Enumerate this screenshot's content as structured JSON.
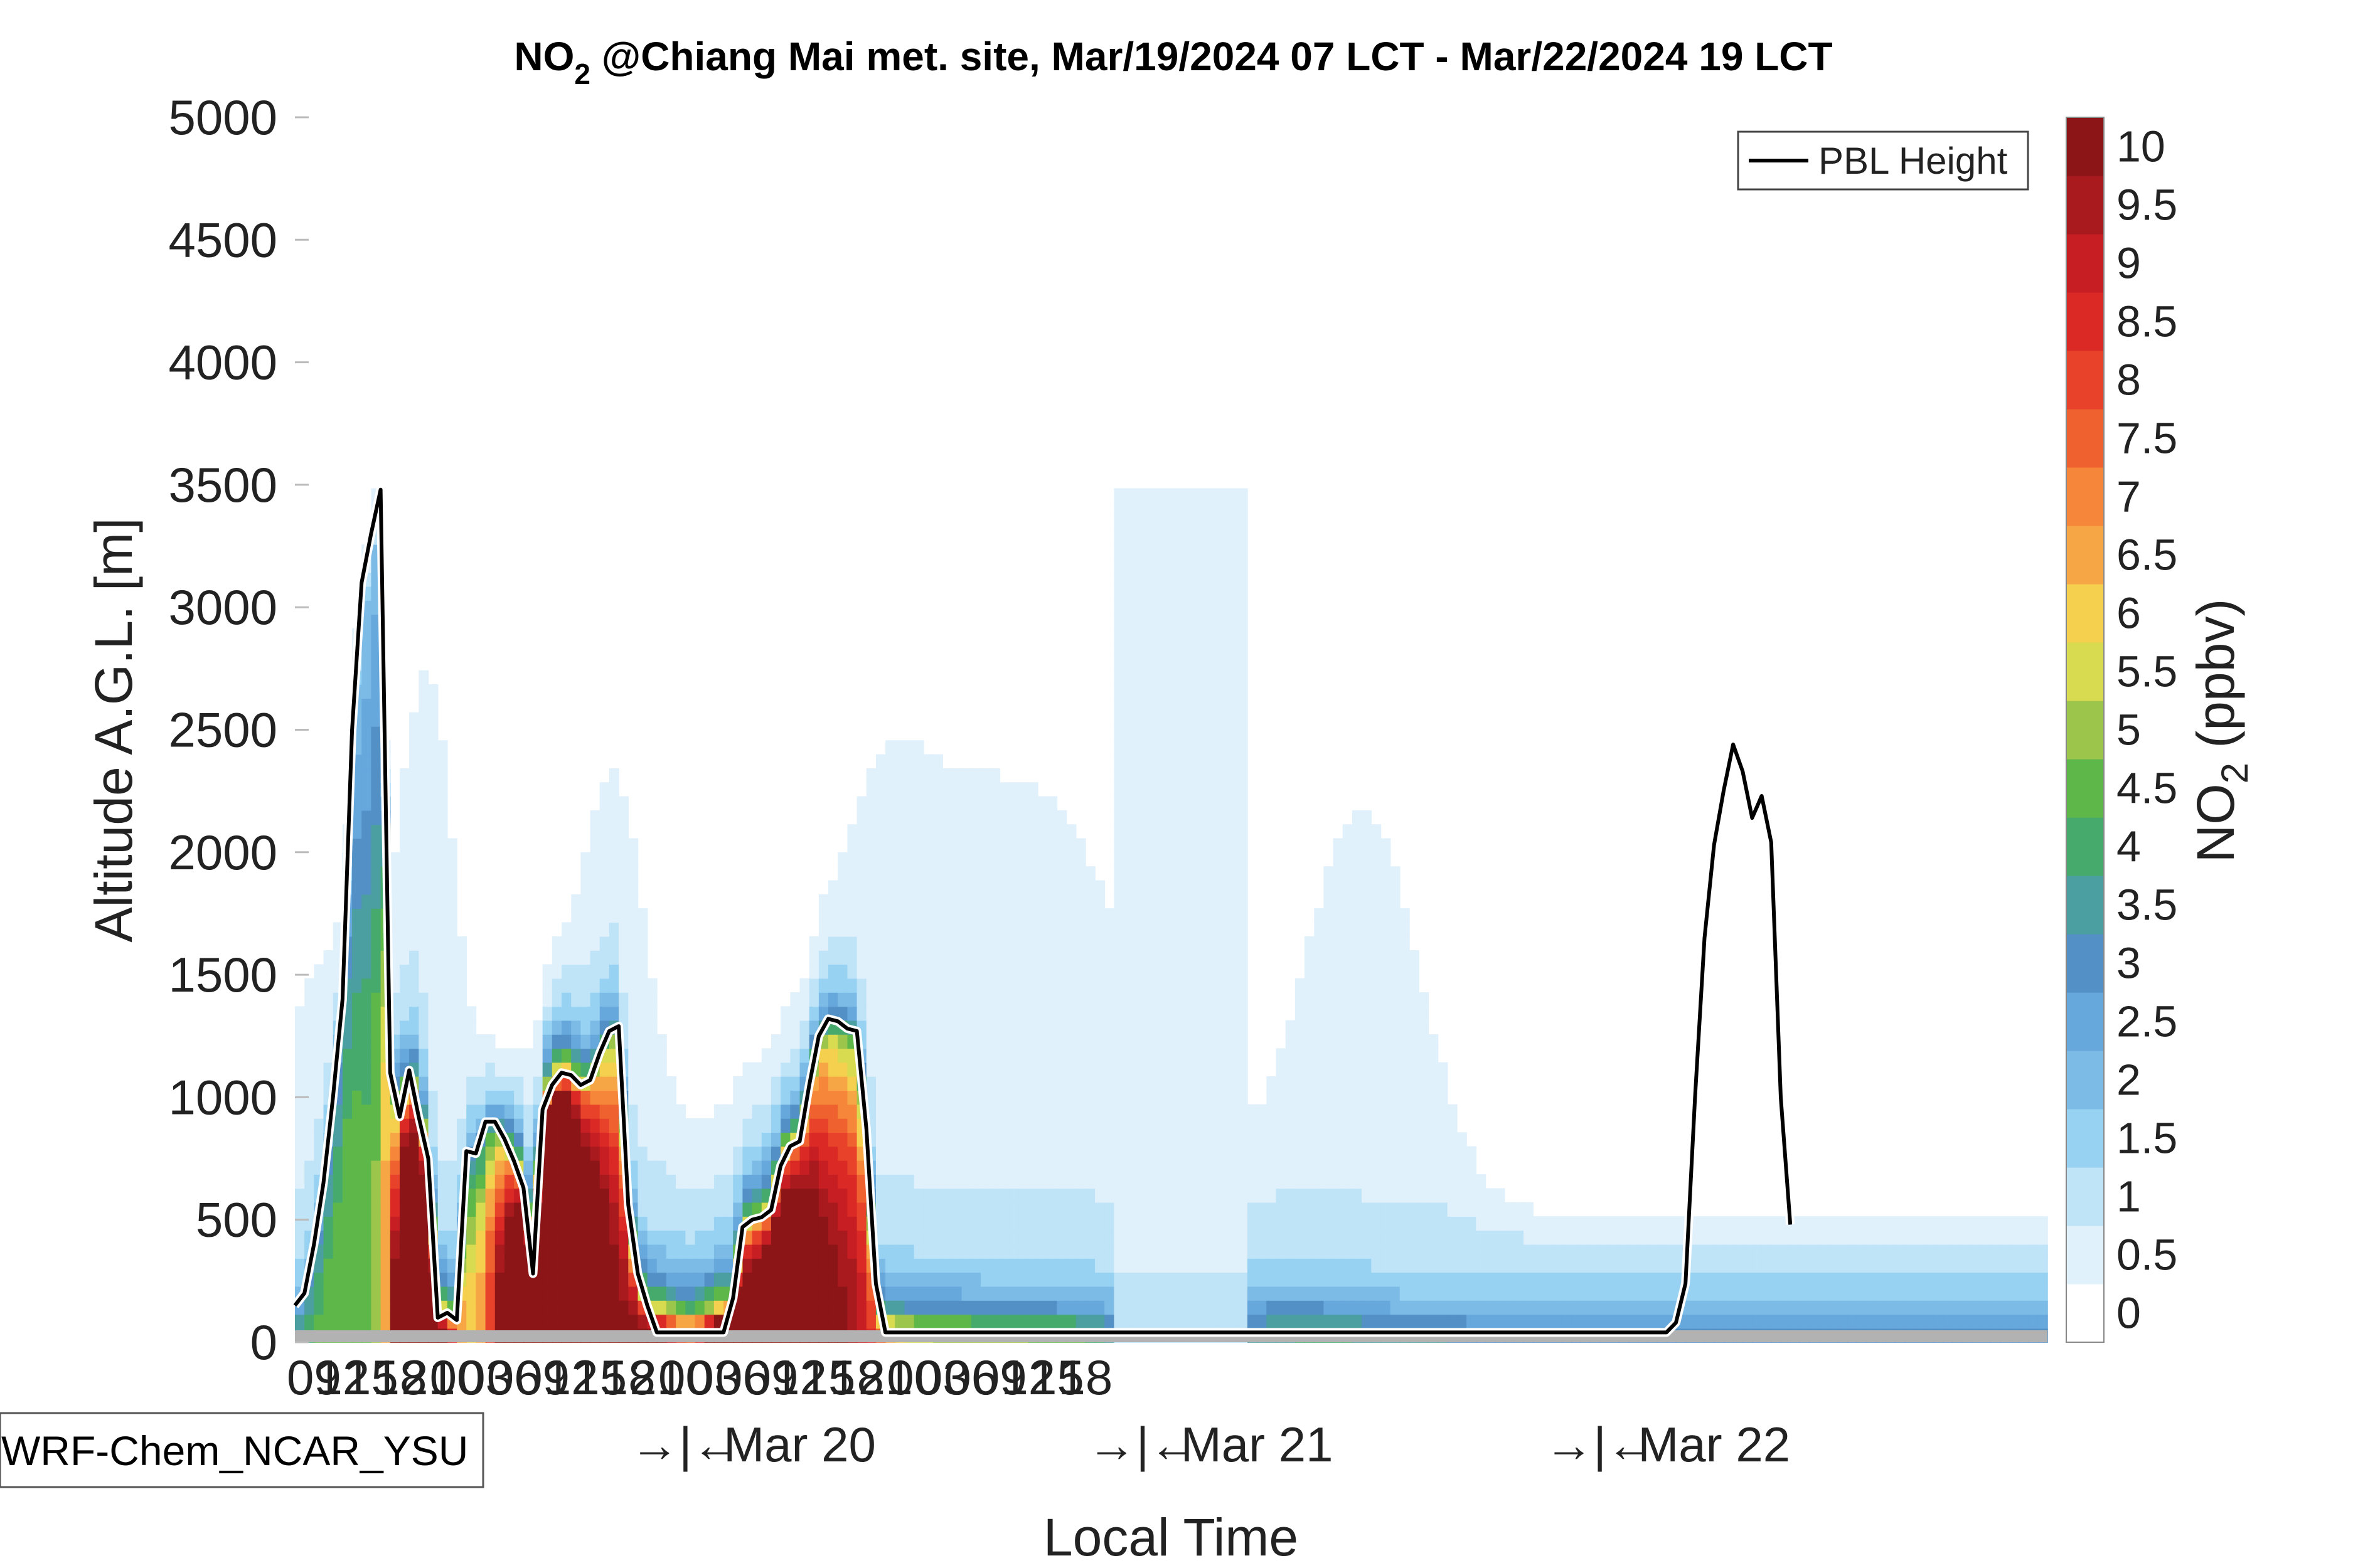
{
  "chart_data": {
    "type": "heatmap",
    "title": "NO₂ @Chiang Mai met. site, Mar/19/2024 07 LCT - Mar/22/2024 19 LCT",
    "title_main": "NO",
    "title_sub": "2",
    "title_rest": " @Chiang Mai met. site, Mar/19/2024 07 LCT - Mar/22/2024 19 LCT",
    "xlabel": "Local Time",
    "ylabel": "Altitude A.G.L. [m]",
    "ylim": [
      0,
      5000
    ],
    "yticks": [
      "0",
      "500",
      "1000",
      "1500",
      "2000",
      "2500",
      "3000",
      "3500",
      "4000",
      "4500",
      "5000"
    ],
    "hour_ticks": [
      "09",
      "12",
      "15",
      "18",
      "21",
      "00",
      "03",
      "06",
      "09",
      "12",
      "15",
      "18",
      "21",
      "00",
      "03",
      "06",
      "09",
      "12",
      "15",
      "18",
      "21",
      "00",
      "03",
      "06",
      "09",
      "12",
      "15",
      "18"
    ],
    "date_labels": [
      "Mar 20",
      "Mar 21",
      "Mar 22"
    ],
    "day_separator": "→|←",
    "model_label": "WRF-Chem_NCAR_YSU",
    "legend_entry": "PBL Height",
    "colorbar": {
      "label_main": "NO",
      "label_sub": "2",
      "label_rest": " (ppbv)",
      "levels": [
        0,
        0.5,
        1,
        1.5,
        2,
        2.5,
        3,
        3.5,
        4,
        4.5,
        5,
        5.5,
        6,
        6.5,
        7,
        7.5,
        8,
        8.5,
        9,
        9.5,
        10,
        10.5
      ],
      "tick_labels": [
        "0",
        "0.5",
        "1",
        "1.5",
        "2",
        "2.5",
        "3",
        "3.5",
        "4",
        "4.5",
        "5",
        "5.5",
        "6",
        "6.5",
        "7",
        "7.5",
        "8",
        "8.5",
        "9",
        "9.5",
        "10"
      ],
      "colors": [
        "#ffffff",
        "#e1f1fb",
        "#bfe3f7",
        "#97d2f2",
        "#7dbbe7",
        "#66a7dc",
        "#5290c6",
        "#4c9fa0",
        "#47aa6d",
        "#5eb849",
        "#9cc64b",
        "#d8da4f",
        "#f5cf4e",
        "#f7a645",
        "#f6873a",
        "#ef6230",
        "#e8432a",
        "#db2a26",
        "#c71e23",
        "#a91a1e",
        "#8c1518"
      ]
    },
    "time_axis": {
      "units": "hours since Mar/19/2024 07 LCT",
      "first_hour_tick": 2,
      "hour_step": 3,
      "date_label_hours": [
        53,
        101,
        149
      ],
      "separator_hours": [
        41,
        89,
        137
      ]
    },
    "pbl_height": {
      "name": "PBL Height",
      "x": [
        0,
        1,
        2,
        3,
        4,
        5,
        6,
        7,
        8,
        9,
        10,
        11,
        12,
        13,
        14,
        15,
        16,
        17,
        18,
        19,
        20,
        21,
        22,
        23,
        24,
        25,
        26,
        27,
        28,
        29,
        30,
        31,
        32,
        33,
        34,
        35,
        36,
        37,
        38,
        39,
        40,
        41,
        42,
        43,
        44,
        45,
        46,
        47,
        48,
        49,
        50,
        51,
        52,
        53,
        54,
        55,
        56,
        57,
        58,
        59,
        60,
        61,
        62,
        63,
        64,
        65,
        66,
        67,
        68,
        69,
        70,
        71,
        72,
        73,
        74,
        75,
        76,
        77,
        78,
        79,
        80,
        81,
        82,
        83,
        84,
        85,
        86,
        87,
        88,
        89,
        90,
        91,
        92,
        93,
        94,
        95,
        96,
        97,
        98,
        99,
        100,
        101,
        102,
        103,
        104,
        105,
        106,
        107,
        108,
        109,
        110,
        111,
        112,
        113,
        114,
        115,
        116,
        117,
        118,
        119,
        120,
        121,
        122,
        123,
        124,
        125,
        126,
        127,
        128,
        129,
        130,
        131,
        132,
        133,
        134,
        135,
        136,
        137,
        138,
        139,
        140,
        141,
        142,
        143,
        144,
        145,
        146,
        147,
        148,
        149,
        150,
        151,
        152,
        153,
        154,
        155,
        156,
        157,
        158,
        159,
        160,
        161,
        162,
        163,
        164,
        165,
        166,
        167,
        168,
        169,
        170,
        171,
        172,
        173,
        174,
        175,
        176,
        177,
        178,
        179,
        180,
        181,
        182,
        183,
        184
      ],
      "y": [
        150,
        200,
        400,
        650,
        1000,
        1400,
        2500,
        3100,
        3300,
        3480,
        1100,
        920,
        1110,
        920,
        750,
        100,
        120,
        90,
        780,
        770,
        900,
        900,
        830,
        740,
        630,
        280,
        950,
        1050,
        1100,
        1090,
        1050,
        1070,
        1180,
        1270,
        1290,
        560,
        280,
        150,
        40,
        40,
        40,
        40,
        40,
        40,
        40,
        40,
        180,
        470,
        500,
        510,
        540,
        720,
        800,
        820,
        1050,
        1250,
        1320,
        1310,
        1280,
        1270,
        870,
        240,
        40,
        40,
        40,
        40,
        40,
        40,
        40,
        40,
        40,
        40,
        40,
        40,
        40,
        40,
        40,
        40,
        40,
        40,
        40,
        40,
        40,
        40,
        40,
        40,
        40,
        40,
        40,
        40,
        40,
        40,
        40,
        40,
        40,
        40,
        40,
        40,
        40,
        40,
        40,
        40,
        40,
        40,
        40,
        40,
        40,
        40,
        40,
        40,
        40,
        40,
        40,
        40,
        40,
        40,
        40,
        40,
        40,
        40,
        40,
        40,
        40,
        40,
        40,
        40,
        40,
        40,
        40,
        40,
        40,
        40,
        40,
        40,
        40,
        40,
        40,
        40,
        40,
        40,
        40,
        40,
        40,
        40,
        40,
        80,
        240,
        1000,
        1650,
        2030,
        2250,
        2440,
        2330,
        2140,
        2230,
        2040,
        1000,
        480
      ]
    }
  }
}
